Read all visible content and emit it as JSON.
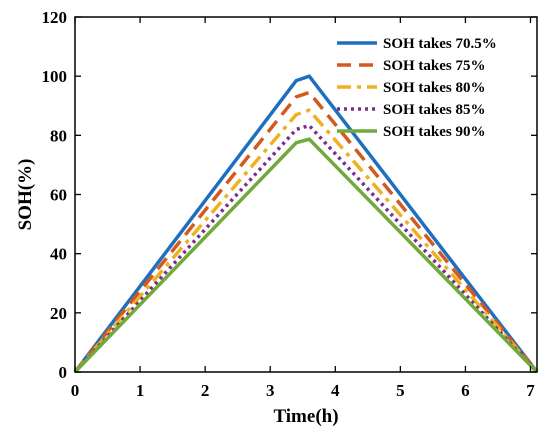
{
  "chart_data": {
    "type": "line",
    "xlabel": "Time(h)",
    "ylabel": "SOH(%)",
    "xlim": [
      0,
      7.1
    ],
    "ylim": [
      0,
      120
    ],
    "xticks": [
      0,
      1,
      2,
      3,
      4,
      5,
      6,
      7
    ],
    "yticks": [
      0,
      20,
      40,
      60,
      80,
      100,
      120
    ],
    "grid": false,
    "legend_position": "top-right",
    "series": [
      {
        "name": "SOH takes 70.5%",
        "color": "#1f6fbf",
        "dash": "solid",
        "x": [
          0,
          3.4,
          3.6,
          7.1
        ],
        "y": [
          0,
          98.5,
          100,
          0
        ]
      },
      {
        "name": "SOH takes 75%",
        "color": "#d35a1f",
        "dash": "dashed",
        "x": [
          0,
          3.4,
          3.6,
          7.1
        ],
        "y": [
          0,
          93,
          94.5,
          0
        ]
      },
      {
        "name": "SOH takes 80%",
        "color": "#eeb11f",
        "dash": "dashdot",
        "x": [
          0,
          3.4,
          3.6,
          7.1
        ],
        "y": [
          0,
          87,
          88.5,
          0
        ]
      },
      {
        "name": "SOH takes 85%",
        "color": "#7a2e91",
        "dash": "dotted",
        "x": [
          0,
          3.4,
          3.6,
          7.1
        ],
        "y": [
          0,
          82,
          83.3,
          0
        ]
      },
      {
        "name": "SOH takes 90%",
        "color": "#6faa3a",
        "dash": "solid",
        "x": [
          0,
          3.4,
          3.6,
          7.1
        ],
        "y": [
          0,
          77.5,
          78.7,
          0
        ]
      }
    ]
  }
}
